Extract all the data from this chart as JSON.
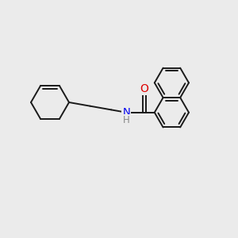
{
  "background_color": "#ebebeb",
  "bond_color": "#1a1a1a",
  "bond_width": 1.4,
  "N_color": "#0000ee",
  "O_color": "#dd0000",
  "H_color": "#888888",
  "figsize": [
    3.0,
    3.0
  ],
  "dpi": 100,
  "xlim": [
    0,
    10
  ],
  "ylim": [
    0,
    10
  ]
}
